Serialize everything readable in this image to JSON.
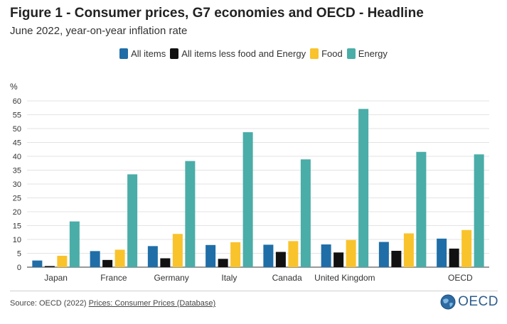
{
  "header": {
    "title": "Figure 1 - Consumer prices, G7 economies and OECD - Headline",
    "subtitle": "June 2022, year-on-year inflation rate"
  },
  "footer": {
    "source_prefix": "Source: OECD (2022) ",
    "source_link": "Prices: Consumer Prices (Database)",
    "logo_text": "OECD"
  },
  "chart_data": {
    "type": "bar",
    "title": "Figure 1 - Consumer prices, G7 economies and OECD - Headline",
    "subtitle": "June 2022, year-on-year inflation rate",
    "ylabel": "%",
    "xlabel": "",
    "ylim": [
      0,
      60
    ],
    "yticks": [
      0,
      5,
      10,
      15,
      20,
      25,
      30,
      35,
      40,
      45,
      50,
      55,
      60
    ],
    "grid": true,
    "legend_position": "top-center",
    "categories": [
      "Japan",
      "France",
      "Germany",
      "Italy",
      "Canada",
      "United Kingdom",
      "",
      "OECD"
    ],
    "series": [
      {
        "name": "All items",
        "color": "#1f6ea8",
        "values": [
          2.4,
          5.8,
          7.6,
          8.0,
          8.1,
          8.2,
          9.1,
          10.3
        ]
      },
      {
        "name": "All items less food and Energy",
        "color": "#111111",
        "values": [
          0.4,
          2.6,
          3.2,
          3.0,
          5.5,
          5.3,
          5.9,
          6.7
        ]
      },
      {
        "name": "Food",
        "color": "#f9c32c",
        "values": [
          4.1,
          6.3,
          12.0,
          9.0,
          9.4,
          9.8,
          12.2,
          13.4
        ]
      },
      {
        "name": "Energy",
        "color": "#4aada8",
        "values": [
          16.5,
          33.5,
          38.3,
          48.7,
          38.9,
          57.1,
          41.6,
          40.7
        ]
      }
    ]
  }
}
